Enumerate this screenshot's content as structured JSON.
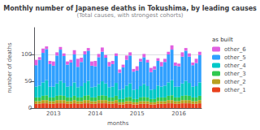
{
  "chart_data": {
    "type": "bar",
    "stacked": true,
    "title": "Monthly number of Japanese deaths in Tokushima, by leading causes",
    "subtitle": "(Total causes, with strongest cohorts)",
    "xlabel": "months",
    "ylabel": "number of deaths",
    "legend_title": "as built",
    "legend": "right",
    "grid": true,
    "ylim": [
      0,
      150
    ],
    "yticks": [
      0,
      50,
      100
    ],
    "categories": [
      null,
      null,
      null,
      null,
      null,
      "2013",
      null,
      null,
      null,
      null,
      null,
      null,
      null,
      null,
      null,
      null,
      null,
      "2014",
      null,
      null,
      null,
      null,
      null,
      null,
      null,
      null,
      null,
      null,
      null,
      "2015",
      null,
      null,
      null,
      null,
      null,
      null,
      null,
      null,
      null,
      null,
      null,
      "2016",
      null,
      null,
      null,
      null,
      null,
      null
    ],
    "series": [
      {
        "name": "other_1",
        "color": "#e8401c",
        "values": [
          8,
          8,
          9,
          9,
          8,
          8,
          9,
          9,
          9,
          8,
          8,
          9,
          8,
          8,
          9,
          9,
          8,
          8,
          9,
          9,
          9,
          8,
          8,
          9,
          7,
          7,
          8,
          8,
          7,
          7,
          8,
          8,
          8,
          7,
          7,
          8,
          8,
          8,
          9,
          9,
          8,
          8,
          9,
          9,
          9,
          8,
          8,
          9
        ]
      },
      {
        "name": "other_2",
        "color": "#b8a020",
        "values": [
          5,
          5,
          6,
          6,
          5,
          5,
          6,
          6,
          6,
          5,
          5,
          6,
          5,
          5,
          6,
          6,
          5,
          5,
          6,
          6,
          6,
          5,
          5,
          6,
          4,
          4,
          5,
          5,
          4,
          4,
          5,
          5,
          5,
          4,
          4,
          5,
          5,
          5,
          6,
          6,
          5,
          5,
          6,
          6,
          6,
          5,
          5,
          6
        ]
      },
      {
        "name": "other_3",
        "color": "#30c850",
        "values": [
          7,
          7,
          8,
          9,
          7,
          7,
          8,
          9,
          8,
          7,
          7,
          8,
          7,
          7,
          8,
          9,
          7,
          7,
          8,
          9,
          8,
          7,
          7,
          8,
          6,
          6,
          7,
          8,
          6,
          6,
          7,
          8,
          7,
          6,
          6,
          7,
          7,
          7,
          8,
          9,
          7,
          7,
          8,
          9,
          8,
          7,
          7,
          8
        ]
      },
      {
        "name": "other_4",
        "color": "#00c8c8",
        "values": [
          20,
          22,
          25,
          28,
          20,
          20,
          23,
          27,
          24,
          20,
          21,
          25,
          19,
          21,
          24,
          27,
          19,
          20,
          22,
          26,
          23,
          19,
          20,
          24,
          17,
          19,
          22,
          25,
          17,
          18,
          21,
          24,
          21,
          17,
          18,
          22,
          20,
          22,
          25,
          28,
          20,
          20,
          23,
          27,
          24,
          20,
          21,
          25
        ]
      },
      {
        "name": "other_5",
        "color": "#30a0ff",
        "values": [
          40,
          48,
          55,
          58,
          42,
          39,
          52,
          58,
          50,
          41,
          44,
          52,
          38,
          45,
          53,
          56,
          40,
          38,
          50,
          55,
          48,
          39,
          42,
          50,
          32,
          40,
          48,
          52,
          34,
          35,
          46,
          50,
          44,
          33,
          37,
          46,
          38,
          44,
          52,
          57,
          39,
          38,
          50,
          56,
          49,
          40,
          43,
          51
        ]
      },
      {
        "name": "other_6",
        "color": "#e060e0",
        "values": [
          10,
          5,
          8,
          5,
          6,
          8,
          6,
          5,
          5,
          6,
          5,
          8,
          15,
          8,
          6,
          5,
          8,
          10,
          6,
          8,
          5,
          8,
          6,
          5,
          6,
          5,
          8,
          6,
          5,
          8,
          5,
          6,
          5,
          8,
          6,
          5,
          8,
          6,
          5,
          8,
          6,
          5,
          8,
          5,
          6,
          5,
          8,
          6
        ]
      }
    ]
  }
}
